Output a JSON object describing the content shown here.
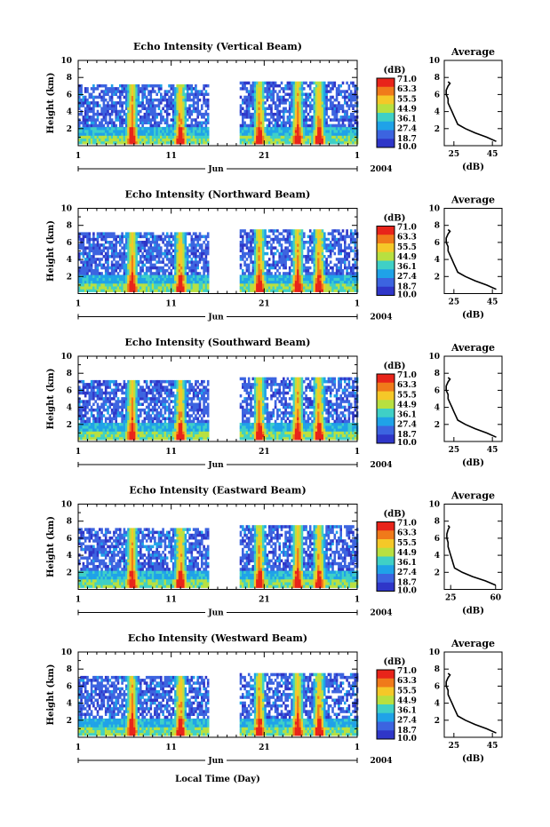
{
  "chart_data": [
    {
      "type": "heatmap",
      "title": "Echo Intensity (Vertical Beam)",
      "ylabel": "Height (km)",
      "ylim": [
        0,
        10
      ],
      "yticks": [
        2,
        4,
        6,
        8,
        10
      ],
      "xlim": [
        1,
        31
      ],
      "xtick_labels": [
        "1",
        "11",
        "21",
        "1"
      ],
      "month_label": "Jun",
      "year_label": "2004",
      "colorbar": {
        "unit": "(dB)",
        "levels": [
          "71.0",
          "63.3",
          "55.5",
          "44.9",
          "36.1",
          "27.4",
          "18.7",
          "10.0"
        ],
        "colors": [
          "#e8241a",
          "#f07a1a",
          "#f5c828",
          "#b8e040",
          "#3fd0c6",
          "#1fa2e8",
          "#3c64e0",
          "#2f36c8"
        ]
      },
      "data_gap": [
        15.0,
        18.4
      ],
      "strong_echo_days": [
        6.8,
        12.0,
        20.5,
        24.6,
        26.9
      ],
      "profile": {
        "title": "Average",
        "xlabel": "(dB)",
        "xtick_labels": [
          "25",
          "45"
        ],
        "xlim": [
          20,
          50
        ],
        "ylim": [
          0,
          10
        ],
        "heights": [
          0.5,
          1.0,
          1.5,
          2.0,
          2.5,
          3.0,
          3.5,
          4.0,
          4.5,
          5.0,
          5.5,
          6.0,
          6.5,
          7.0,
          7.3,
          7.5
        ],
        "values": [
          47,
          42,
          36,
          31,
          27,
          26,
          25,
          24,
          23,
          22,
          22,
          21,
          21,
          22,
          23,
          22
        ]
      }
    },
    {
      "type": "heatmap",
      "title": "Echo Intensity (Northward Beam)",
      "ylabel": "Height (km)",
      "ylim": [
        0,
        10
      ],
      "yticks": [
        2,
        4,
        6,
        8,
        10
      ],
      "xlim": [
        1,
        31
      ],
      "xtick_labels": [
        "1",
        "11",
        "21",
        "1"
      ],
      "month_label": "Jun",
      "year_label": "2004",
      "colorbar": {
        "unit": "(dB)",
        "levels": [
          "71.0",
          "63.3",
          "55.5",
          "44.9",
          "36.1",
          "27.4",
          "18.7",
          "10.0"
        ],
        "colors": [
          "#e8241a",
          "#f07a1a",
          "#f5c828",
          "#b8e040",
          "#3fd0c6",
          "#1fa2e8",
          "#3c64e0",
          "#2f36c8"
        ]
      },
      "data_gap": [
        15.0,
        18.4
      ],
      "strong_echo_days": [
        6.8,
        12.0,
        20.5,
        24.6,
        26.9
      ],
      "profile": {
        "title": "Average",
        "xlabel": "(dB)",
        "xtick_labels": [
          "25",
          "45"
        ],
        "xlim": [
          20,
          50
        ],
        "ylim": [
          0,
          10
        ],
        "heights": [
          0.5,
          1.0,
          1.5,
          2.0,
          2.5,
          3.0,
          3.5,
          4.0,
          4.5,
          5.0,
          5.5,
          6.0,
          6.5,
          7.0,
          7.3,
          7.5
        ],
        "values": [
          47,
          42,
          36,
          31,
          27,
          26,
          25,
          24,
          23,
          22,
          22,
          21,
          21,
          22,
          23,
          22
        ]
      }
    },
    {
      "type": "heatmap",
      "title": "Echo Intensity (Southward Beam)",
      "ylabel": "Height (km)",
      "ylim": [
        0,
        10
      ],
      "yticks": [
        2,
        4,
        6,
        8,
        10
      ],
      "xlim": [
        1,
        31
      ],
      "xtick_labels": [
        "1",
        "11",
        "21",
        "1"
      ],
      "month_label": "Jun",
      "year_label": "2004",
      "colorbar": {
        "unit": "(dB)",
        "levels": [
          "71.0",
          "63.3",
          "55.5",
          "44.9",
          "36.1",
          "27.4",
          "18.7",
          "10.0"
        ],
        "colors": [
          "#e8241a",
          "#f07a1a",
          "#f5c828",
          "#b8e040",
          "#3fd0c6",
          "#1fa2e8",
          "#3c64e0",
          "#2f36c8"
        ]
      },
      "data_gap": [
        15.0,
        18.4
      ],
      "strong_echo_days": [
        6.8,
        12.0,
        20.5,
        24.6,
        26.9
      ],
      "profile": {
        "title": "Average",
        "xlabel": "(dB)",
        "xtick_labels": [
          "25",
          "45"
        ],
        "xlim": [
          20,
          50
        ],
        "ylim": [
          0,
          10
        ],
        "heights": [
          0.5,
          1.0,
          1.5,
          2.0,
          2.5,
          3.0,
          3.5,
          4.0,
          4.5,
          5.0,
          5.5,
          6.0,
          6.5,
          7.0,
          7.3,
          7.5
        ],
        "values": [
          47,
          42,
          36,
          31,
          27,
          26,
          25,
          24,
          23,
          22,
          22,
          21,
          21,
          22,
          23,
          22
        ]
      }
    },
    {
      "type": "heatmap",
      "title": "Echo Intensity (Eastward Beam)",
      "ylabel": "Height (km)",
      "ylim": [
        0,
        10
      ],
      "yticks": [
        2,
        4,
        6,
        8,
        10
      ],
      "xlim": [
        1,
        31
      ],
      "xtick_labels": [
        "1",
        "11",
        "21",
        "1"
      ],
      "month_label": "Jun",
      "year_label": "2004",
      "colorbar": {
        "unit": "(dB)",
        "levels": [
          "71.0",
          "63.3",
          "55.5",
          "44.9",
          "36.1",
          "27.4",
          "18.7",
          "10.0"
        ],
        "colors": [
          "#e8241a",
          "#f07a1a",
          "#f5c828",
          "#b8e040",
          "#3fd0c6",
          "#1fa2e8",
          "#3c64e0",
          "#2f36c8"
        ]
      },
      "data_gap": [
        15.0,
        18.4
      ],
      "strong_echo_days": [
        6.8,
        12.0,
        20.5,
        24.6,
        26.9
      ],
      "profile": {
        "title": "Average",
        "xlabel": "(dB)",
        "xtick_labels": [
          "25",
          "60"
        ],
        "xlim": [
          20,
          65
        ],
        "ylim": [
          0,
          10
        ],
        "heights": [
          0.5,
          1.0,
          1.5,
          2.0,
          2.5,
          3.0,
          3.5,
          4.0,
          4.5,
          5.0,
          5.5,
          6.0,
          6.5,
          7.0,
          7.3,
          7.5
        ],
        "values": [
          60,
          52,
          42,
          34,
          28,
          27,
          26,
          25,
          24,
          23,
          23,
          22,
          22,
          23,
          24,
          23
        ]
      }
    },
    {
      "type": "heatmap",
      "title": "Echo Intensity (Westward Beam)",
      "ylabel": "Height (km)",
      "ylim": [
        0,
        10
      ],
      "yticks": [
        2,
        4,
        6,
        8,
        10
      ],
      "xlim": [
        1,
        31
      ],
      "xtick_labels": [
        "1",
        "11",
        "21",
        "1"
      ],
      "month_label": "Jun",
      "year_label": "2004",
      "colorbar": {
        "unit": "(dB)",
        "levels": [
          "71.0",
          "63.3",
          "55.5",
          "44.9",
          "36.1",
          "27.4",
          "18.7",
          "10.0"
        ],
        "colors": [
          "#e8241a",
          "#f07a1a",
          "#f5c828",
          "#b8e040",
          "#3fd0c6",
          "#1fa2e8",
          "#3c64e0",
          "#2f36c8"
        ]
      },
      "data_gap": [
        15.0,
        18.4
      ],
      "strong_echo_days": [
        6.8,
        12.0,
        20.5,
        24.6,
        26.9
      ],
      "profile": {
        "title": "Average",
        "xlabel": "(dB)",
        "xtick_labels": [
          "25",
          "45"
        ],
        "xlim": [
          20,
          50
        ],
        "ylim": [
          0,
          10
        ],
        "heights": [
          0.5,
          1.0,
          1.5,
          2.0,
          2.5,
          3.0,
          3.5,
          4.0,
          4.5,
          5.0,
          5.5,
          6.0,
          6.5,
          7.0,
          7.3,
          7.5
        ],
        "values": [
          47,
          42,
          36,
          31,
          27,
          26,
          25,
          24,
          23,
          22,
          22,
          21,
          21,
          22,
          23,
          22
        ]
      }
    }
  ],
  "xlabel": "Local Time (Day)"
}
